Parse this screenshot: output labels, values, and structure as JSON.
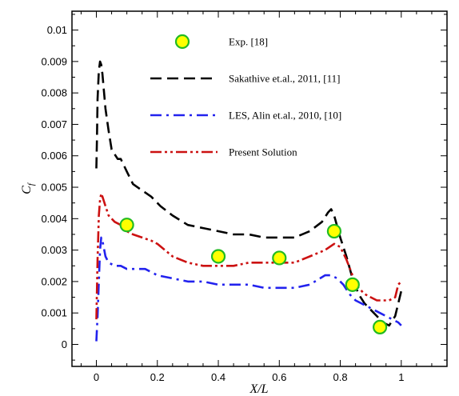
{
  "chart_data": {
    "type": "line",
    "xlabel": "X/L",
    "ylabel_main": "C",
    "ylabel_sub": "f",
    "xlim": [
      -0.08,
      1.15
    ],
    "ylim": [
      -0.0007,
      0.0106
    ],
    "x_ticks": [
      {
        "value": 0,
        "label": "0"
      },
      {
        "value": 0.2,
        "label": "0.2"
      },
      {
        "value": 0.4,
        "label": "0.4"
      },
      {
        "value": 0.6,
        "label": "0.6"
      },
      {
        "value": 0.8,
        "label": "0.8"
      },
      {
        "value": 1.0,
        "label": "1"
      }
    ],
    "y_ticks": [
      {
        "value": 0,
        "label": "0"
      },
      {
        "value": 0.001,
        "label": "0.001"
      },
      {
        "value": 0.002,
        "label": "0.002"
      },
      {
        "value": 0.003,
        "label": "0.003"
      },
      {
        "value": 0.004,
        "label": "0.004"
      },
      {
        "value": 0.005,
        "label": "0.005"
      },
      {
        "value": 0.006,
        "label": "0.006"
      },
      {
        "value": 0.007,
        "label": "0.007"
      },
      {
        "value": 0.008,
        "label": "0.008"
      },
      {
        "value": 0.009,
        "label": "0.009"
      },
      {
        "value": 0.01,
        "label": "0.01"
      }
    ],
    "grid": false,
    "legend_position": "top-center",
    "series": [
      {
        "name": "Exp. [18]",
        "kind": "scatter",
        "color": "#ffff00",
        "edge_color": "#22bb22",
        "x": [
          0.1,
          0.4,
          0.6,
          0.78,
          0.84,
          0.93
        ],
        "y": [
          0.0038,
          0.0028,
          0.00275,
          0.0036,
          0.0019,
          0.00055
        ]
      },
      {
        "name": "Sakathive et.al., 2011, [11]",
        "kind": "line",
        "dash": "dash",
        "color": "#000000",
        "x": [
          0.0,
          0.002,
          0.004,
          0.008,
          0.012,
          0.016,
          0.02,
          0.03,
          0.04,
          0.05,
          0.07,
          0.08,
          0.09,
          0.1,
          0.12,
          0.15,
          0.18,
          0.21,
          0.25,
          0.3,
          0.35,
          0.4,
          0.45,
          0.5,
          0.55,
          0.6,
          0.65,
          0.7,
          0.74,
          0.76,
          0.77,
          0.78,
          0.8,
          0.82,
          0.84,
          0.86,
          0.88,
          0.9,
          0.92,
          0.94,
          0.96,
          0.98,
          0.99,
          1.0
        ],
        "y": [
          0.0056,
          0.0066,
          0.0078,
          0.0087,
          0.009,
          0.0089,
          0.0086,
          0.0075,
          0.0068,
          0.0062,
          0.0059,
          0.0059,
          0.0057,
          0.0055,
          0.0051,
          0.0049,
          0.0047,
          0.0044,
          0.0041,
          0.0038,
          0.0037,
          0.0036,
          0.0035,
          0.0035,
          0.0034,
          0.0034,
          0.0034,
          0.0036,
          0.0039,
          0.0042,
          0.0043,
          0.0041,
          0.0034,
          0.0028,
          0.0021,
          0.0016,
          0.0013,
          0.0011,
          0.0009,
          0.0007,
          0.0006,
          0.0009,
          0.0013,
          0.0017
        ]
      },
      {
        "name": "LES, Alin et.al., 2010, [10]",
        "kind": "line",
        "dash": "dashdot",
        "color": "#2222ee",
        "x": [
          0.0,
          0.004,
          0.008,
          0.012,
          0.016,
          0.02,
          0.03,
          0.04,
          0.06,
          0.08,
          0.1,
          0.12,
          0.14,
          0.16,
          0.2,
          0.25,
          0.3,
          0.35,
          0.4,
          0.45,
          0.5,
          0.55,
          0.6,
          0.65,
          0.7,
          0.75,
          0.77,
          0.79,
          0.81,
          0.83,
          0.85,
          0.87,
          0.89,
          0.91,
          0.93,
          0.95,
          0.97,
          0.99,
          1.0
        ],
        "y": [
          0.0001,
          0.0009,
          0.002,
          0.003,
          0.0034,
          0.0033,
          0.0028,
          0.0026,
          0.0025,
          0.0025,
          0.0024,
          0.0024,
          0.0024,
          0.0024,
          0.0022,
          0.0021,
          0.002,
          0.002,
          0.0019,
          0.0019,
          0.0019,
          0.0018,
          0.0018,
          0.0018,
          0.0019,
          0.0022,
          0.0022,
          0.0021,
          0.0019,
          0.0016,
          0.0014,
          0.0013,
          0.0012,
          0.0011,
          0.001,
          0.0009,
          0.0008,
          0.0007,
          0.0006
        ]
      },
      {
        "name": "Present Solution",
        "kind": "line",
        "dash": "dashdotdot",
        "color": "#cc1111",
        "x": [
          0.0,
          0.004,
          0.008,
          0.012,
          0.016,
          0.02,
          0.03,
          0.04,
          0.06,
          0.08,
          0.1,
          0.12,
          0.15,
          0.18,
          0.2,
          0.25,
          0.3,
          0.35,
          0.4,
          0.45,
          0.5,
          0.55,
          0.6,
          0.65,
          0.7,
          0.75,
          0.78,
          0.8,
          0.82,
          0.84,
          0.86,
          0.88,
          0.9,
          0.92,
          0.94,
          0.96,
          0.98,
          0.99,
          1.0
        ],
        "y": [
          0.0008,
          0.0027,
          0.0041,
          0.0046,
          0.0048,
          0.0047,
          0.0044,
          0.0041,
          0.0039,
          0.0038,
          0.0036,
          0.0035,
          0.0034,
          0.0033,
          0.0032,
          0.0028,
          0.0026,
          0.0025,
          0.0025,
          0.0025,
          0.0026,
          0.0026,
          0.0026,
          0.0026,
          0.0028,
          0.003,
          0.0032,
          0.0031,
          0.0027,
          0.0022,
          0.0018,
          0.0016,
          0.0015,
          0.0014,
          0.0014,
          0.0014,
          0.0015,
          0.0019,
          0.002
        ]
      }
    ]
  }
}
